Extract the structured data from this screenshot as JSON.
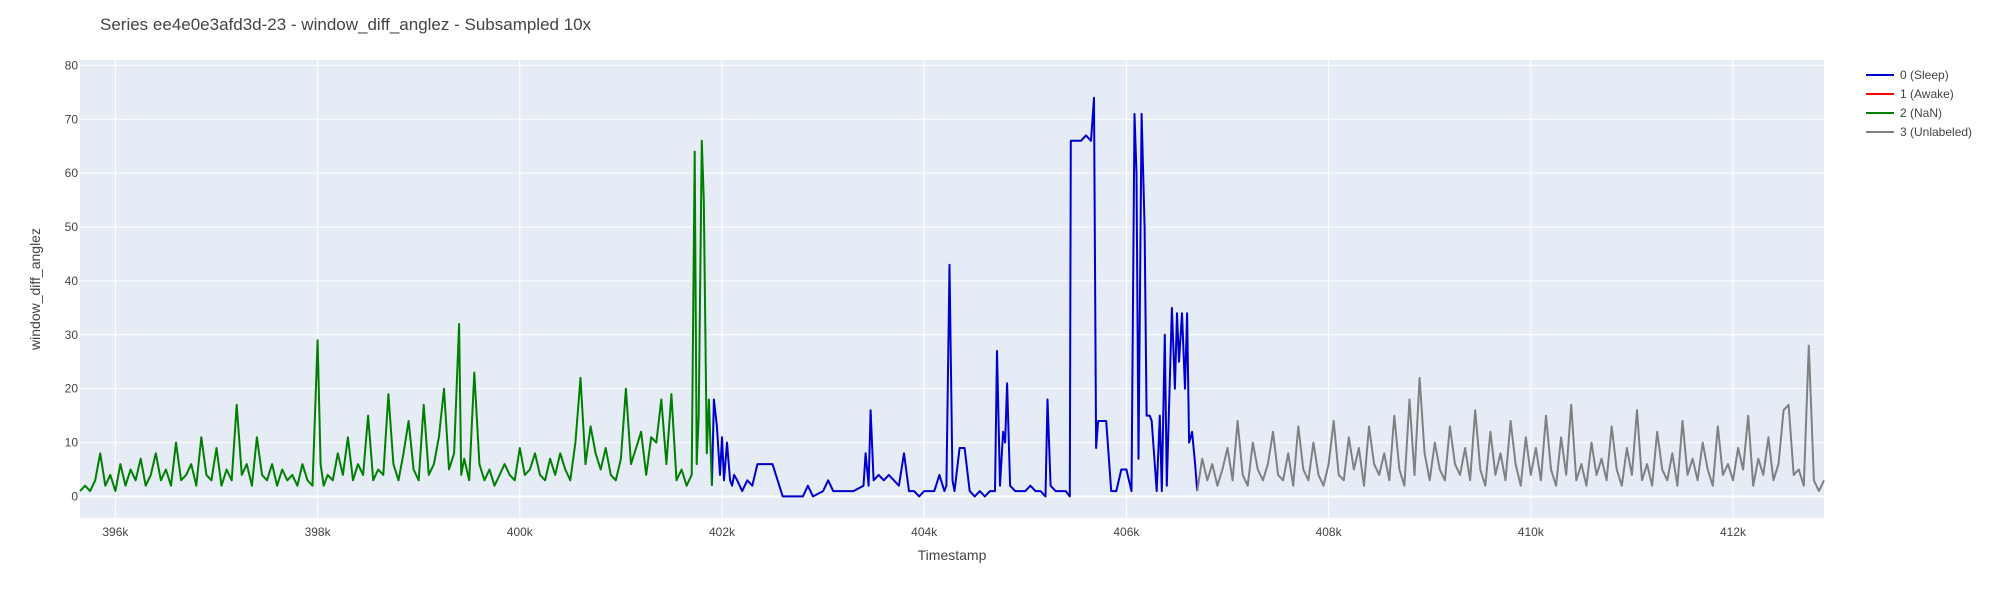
{
  "chart_data": {
    "type": "line",
    "title": "Series ee4e0e3afd3d-23 - window_diff_anglez - Subsampled 10x",
    "xlabel": "Timestamp",
    "ylabel": "window_diff_anglez",
    "xlim": [
      395650,
      412900
    ],
    "ylim": [
      -4,
      81
    ],
    "x_ticks": [
      {
        "value": 396000,
        "label": "396k"
      },
      {
        "value": 398000,
        "label": "398k"
      },
      {
        "value": 400000,
        "label": "400k"
      },
      {
        "value": 402000,
        "label": "402k"
      },
      {
        "value": 404000,
        "label": "404k"
      },
      {
        "value": 406000,
        "label": "406k"
      },
      {
        "value": 408000,
        "label": "408k"
      },
      {
        "value": 410000,
        "label": "410k"
      },
      {
        "value": 412000,
        "label": "412k"
      }
    ],
    "y_ticks": [
      {
        "value": 0,
        "label": "0"
      },
      {
        "value": 10,
        "label": "10"
      },
      {
        "value": 20,
        "label": "20"
      },
      {
        "value": 30,
        "label": "30"
      },
      {
        "value": 40,
        "label": "40"
      },
      {
        "value": 50,
        "label": "50"
      },
      {
        "value": 60,
        "label": "60"
      },
      {
        "value": 70,
        "label": "70"
      },
      {
        "value": 80,
        "label": "80"
      }
    ],
    "grid": true,
    "legend": "top-right",
    "colors": {
      "plot_background": "#e5ecf6",
      "grid": "#ffffff",
      "sleep": "#0000cc",
      "awake": "#ff0000",
      "nan": "#008000",
      "unlabeled": "#808080"
    },
    "series": [
      {
        "name": "0 (Sleep)",
        "color": "#0000cc",
        "x": [
          401900,
          401920,
          401950,
          401980,
          402000,
          402020,
          402050,
          402080,
          402100,
          402120,
          402150,
          402200,
          402250,
          402300,
          402350,
          402400,
          402450,
          402500,
          402600,
          402700,
          402800,
          402850,
          402900,
          403000,
          403050,
          403100,
          403150,
          403200,
          403300,
          403400,
          403420,
          403450,
          403470,
          403500,
          403550,
          403600,
          403650,
          403700,
          403750,
          403800,
          403850,
          403900,
          403950,
          404000,
          404100,
          404150,
          404200,
          404220,
          404250,
          404280,
          404300,
          404350,
          404400,
          404450,
          404500,
          404550,
          404600,
          404650,
          404700,
          404720,
          404750,
          404780,
          404800,
          404820,
          404850,
          404900,
          404950,
          405000,
          405050,
          405100,
          405150,
          405200,
          405220,
          405250,
          405300,
          405350,
          405400,
          405440,
          405450,
          405480,
          405500,
          405550,
          405600,
          405650,
          405680,
          405700,
          405720,
          405750,
          405800,
          405850,
          405900,
          405950,
          406000,
          406050,
          406080,
          406100,
          406120,
          406150,
          406180,
          406200,
          406230,
          406250,
          406300,
          406330,
          406350,
          406380,
          406400,
          406450,
          406480,
          406500,
          406520,
          406550,
          406580,
          406600,
          406620,
          406650,
          406680,
          406700
        ],
        "y": [
          2,
          18,
          13,
          4,
          11,
          3,
          10,
          3,
          2,
          4,
          3,
          1,
          3,
          2,
          6,
          6,
          6,
          6,
          0,
          0,
          0,
          2,
          0,
          1,
          3,
          1,
          1,
          1,
          1,
          2,
          8,
          2,
          16,
          3,
          4,
          3,
          4,
          3,
          2,
          8,
          1,
          1,
          0,
          1,
          1,
          4,
          1,
          2,
          43,
          3,
          1,
          9,
          9,
          1,
          0,
          1,
          0,
          1,
          1,
          27,
          2,
          12,
          10,
          21,
          2,
          1,
          1,
          1,
          2,
          1,
          1,
          0,
          18,
          2,
          1,
          1,
          1,
          0,
          66,
          66,
          66,
          66,
          67,
          66,
          74,
          9,
          14,
          14,
          14,
          1,
          1,
          5,
          5,
          1,
          71,
          60,
          7,
          71,
          50,
          15,
          15,
          14,
          1,
          15,
          1,
          30,
          2,
          35,
          20,
          34,
          25,
          34,
          20,
          34,
          10,
          12,
          6,
          1
        ]
      },
      {
        "name": "1 (Awake)",
        "color": "#ff0000",
        "x": [],
        "y": []
      },
      {
        "name": "2 (NaN)",
        "color": "#008000",
        "x": [
          395650,
          395700,
          395750,
          395800,
          395850,
          395900,
          395950,
          396000,
          396050,
          396100,
          396150,
          396200,
          396250,
          396300,
          396350,
          396400,
          396450,
          396500,
          396550,
          396600,
          396650,
          396700,
          396750,
          396800,
          396850,
          396900,
          396950,
          397000,
          397050,
          397100,
          397150,
          397200,
          397250,
          397300,
          397350,
          397400,
          397450,
          397500,
          397550,
          397600,
          397650,
          397700,
          397750,
          397800,
          397850,
          397900,
          397950,
          398000,
          398030,
          398060,
          398100,
          398150,
          398200,
          398250,
          398300,
          398350,
          398400,
          398450,
          398500,
          398550,
          398600,
          398650,
          398700,
          398750,
          398800,
          398850,
          398900,
          398950,
          399000,
          399050,
          399100,
          399150,
          399200,
          399250,
          399300,
          399350,
          399400,
          399420,
          399450,
          399500,
          399550,
          399600,
          399650,
          399700,
          399750,
          399800,
          399850,
          399900,
          399950,
          400000,
          400050,
          400100,
          400150,
          400200,
          400250,
          400300,
          400350,
          400400,
          400450,
          400500,
          400550,
          400600,
          400650,
          400700,
          400750,
          400800,
          400850,
          400900,
          400950,
          401000,
          401050,
          401100,
          401150,
          401200,
          401250,
          401300,
          401350,
          401400,
          401450,
          401500,
          401550,
          401600,
          401650,
          401700,
          401730,
          401750,
          401770,
          401800,
          401820,
          401850,
          401870,
          401900
        ],
        "y": [
          1,
          2,
          1,
          3,
          8,
          2,
          4,
          1,
          6,
          2,
          5,
          3,
          7,
          2,
          4,
          8,
          3,
          5,
          2,
          10,
          3,
          4,
          6,
          2,
          11,
          4,
          3,
          9,
          2,
          5,
          3,
          17,
          4,
          6,
          2,
          11,
          4,
          3,
          6,
          2,
          5,
          3,
          4,
          2,
          6,
          3,
          2,
          29,
          6,
          2,
          4,
          3,
          8,
          4,
          11,
          3,
          6,
          4,
          15,
          3,
          5,
          4,
          19,
          6,
          3,
          8,
          14,
          5,
          3,
          17,
          4,
          6,
          11,
          20,
          5,
          8,
          32,
          4,
          7,
          3,
          23,
          6,
          3,
          5,
          2,
          4,
          6,
          4,
          3,
          9,
          4,
          5,
          8,
          4,
          3,
          7,
          4,
          8,
          5,
          3,
          10,
          22,
          6,
          13,
          8,
          5,
          9,
          4,
          3,
          7,
          20,
          6,
          9,
          12,
          4,
          11,
          10,
          18,
          6,
          19,
          3,
          5,
          2,
          4,
          64,
          6,
          15,
          66,
          55,
          8,
          18,
          2
        ]
      },
      {
        "name": "3 (Unlabeled)",
        "color": "#808080",
        "x": [
          406700,
          406750,
          406800,
          406850,
          406900,
          406950,
          407000,
          407050,
          407100,
          407150,
          407200,
          407250,
          407300,
          407350,
          407400,
          407450,
          407500,
          407550,
          407600,
          407650,
          407700,
          407750,
          407800,
          407850,
          407900,
          407950,
          408000,
          408050,
          408100,
          408150,
          408200,
          408250,
          408300,
          408350,
          408400,
          408450,
          408500,
          408550,
          408600,
          408650,
          408700,
          408750,
          408800,
          408850,
          408900,
          408950,
          409000,
          409050,
          409100,
          409150,
          409200,
          409250,
          409300,
          409350,
          409400,
          409450,
          409500,
          409550,
          409600,
          409650,
          409700,
          409750,
          409800,
          409850,
          409900,
          409950,
          410000,
          410050,
          410100,
          410150,
          410200,
          410250,
          410300,
          410350,
          410400,
          410450,
          410500,
          410550,
          410600,
          410650,
          410700,
          410750,
          410800,
          410850,
          410900,
          410950,
          411000,
          411050,
          411100,
          411150,
          411200,
          411250,
          411300,
          411350,
          411400,
          411450,
          411500,
          411550,
          411600,
          411650,
          411700,
          411750,
          411800,
          411850,
          411900,
          411950,
          412000,
          412050,
          412100,
          412150,
          412200,
          412250,
          412300,
          412350,
          412400,
          412450,
          412500,
          412550,
          412600,
          412650,
          412700,
          412750,
          412800,
          412850,
          412900
        ],
        "y": [
          1,
          7,
          3,
          6,
          2,
          5,
          9,
          3,
          14,
          4,
          2,
          10,
          5,
          3,
          6,
          12,
          4,
          3,
          8,
          2,
          13,
          5,
          3,
          10,
          4,
          2,
          6,
          14,
          4,
          3,
          11,
          5,
          9,
          2,
          13,
          6,
          4,
          8,
          3,
          15,
          5,
          2,
          18,
          4,
          22,
          8,
          3,
          10,
          5,
          3,
          13,
          6,
          4,
          9,
          3,
          16,
          5,
          2,
          12,
          4,
          8,
          3,
          14,
          6,
          2,
          11,
          4,
          9,
          3,
          15,
          5,
          2,
          11,
          4,
          17,
          3,
          6,
          2,
          10,
          4,
          7,
          3,
          13,
          5,
          2,
          9,
          4,
          16,
          3,
          6,
          2,
          12,
          5,
          3,
          8,
          2,
          14,
          4,
          7,
          3,
          10,
          5,
          2,
          13,
          4,
          6,
          3,
          9,
          5,
          15,
          2,
          7,
          4,
          11,
          3,
          6,
          16,
          17,
          4,
          5,
          2,
          28,
          3,
          1,
          3
        ]
      }
    ]
  }
}
